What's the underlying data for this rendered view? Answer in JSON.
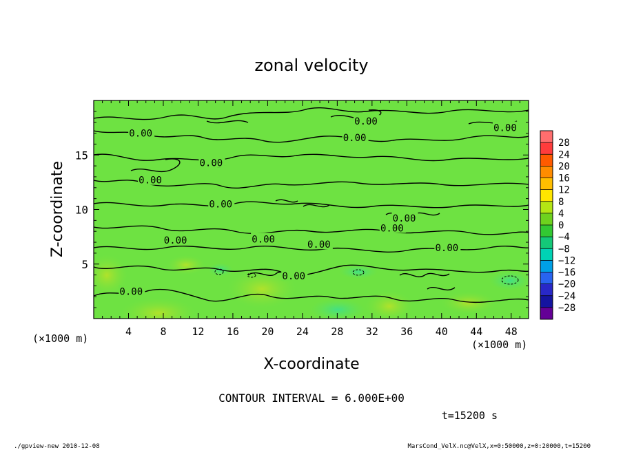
{
  "chart_data": {
    "type": "contour",
    "title": "zonal velocity",
    "xlabel": "X-coordinate",
    "ylabel": "Z-coordinate",
    "x_unit_label": "(×1000 m)",
    "y_unit_label": "(×1000 m)",
    "xlim": [
      0,
      50
    ],
    "ylim": [
      0,
      20
    ],
    "x_ticks": [
      4,
      8,
      12,
      16,
      20,
      24,
      28,
      32,
      36,
      40,
      44,
      48
    ],
    "y_ticks": [
      5,
      10,
      15
    ],
    "contour_interval_text": "CONTOUR INTERVAL = 6.000E+00",
    "time_text": "t=15200 s",
    "contour_labels": [
      {
        "text": "0.00",
        "x": 5.4,
        "z": 17.0
      },
      {
        "text": "0.00",
        "x": 13.5,
        "z": 14.3
      },
      {
        "text": "0.00",
        "x": 6.5,
        "z": 12.7
      },
      {
        "text": "0.00",
        "x": 14.6,
        "z": 10.5
      },
      {
        "text": "0.00",
        "x": 31.3,
        "z": 18.1
      },
      {
        "text": "0.00",
        "x": 30.0,
        "z": 16.6
      },
      {
        "text": "0.00",
        "x": 47.3,
        "z": 17.5
      },
      {
        "text": "0.00",
        "x": 9.4,
        "z": 7.2
      },
      {
        "text": "0.00",
        "x": 19.5,
        "z": 7.3
      },
      {
        "text": "0.00",
        "x": 34.3,
        "z": 8.3
      },
      {
        "text": "0.00",
        "x": 35.7,
        "z": 9.2
      },
      {
        "text": "0.00",
        "x": 25.9,
        "z": 6.8
      },
      {
        "text": "0.00",
        "x": 40.6,
        "z": 6.5
      },
      {
        "text": "0.00",
        "x": 23.0,
        "z": 3.9
      },
      {
        "text": "0.00",
        "x": 4.3,
        "z": 2.5
      }
    ],
    "colorbar": {
      "labels": [
        "28",
        "24",
        "20",
        "16",
        "12",
        "8",
        "4",
        "0",
        "−4",
        "−8",
        "−12",
        "−16",
        "−20",
        "−24",
        "−28"
      ],
      "colors": [
        "#ff6e6e",
        "#ff3c3c",
        "#ff5a00",
        "#ff8c00",
        "#ffbe00",
        "#ffe600",
        "#b4e614",
        "#6ed21e",
        "#32c832",
        "#14c878",
        "#00d2b4",
        "#00a0e6",
        "#2864f0",
        "#2828c8",
        "#1414a0",
        "#640096"
      ]
    }
  },
  "footer": {
    "left": "./gpview-new  2010-12-08",
    "right": "MarsCond_VelX.nc@VelX,x=0:50000,z=0:20000,t=15200"
  }
}
